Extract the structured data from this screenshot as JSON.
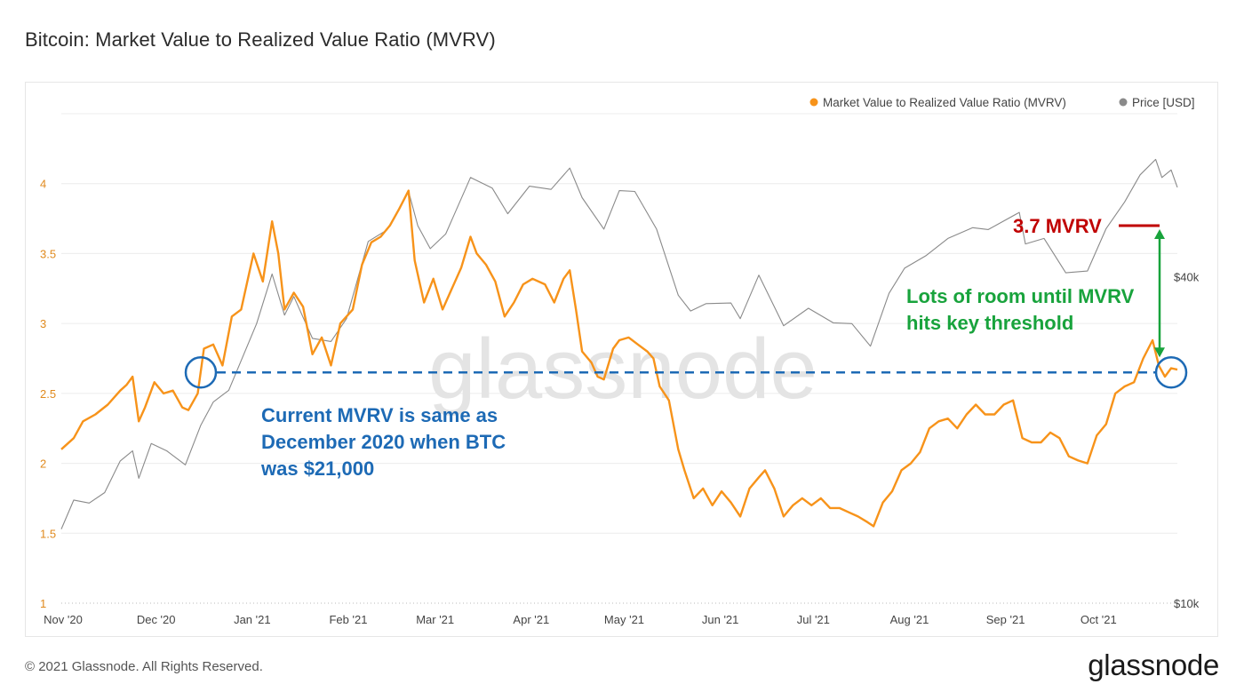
{
  "title": "Bitcoin: Market Value to Realized Value Ratio (MVRV)",
  "footer": {
    "copyright": "© 2021 Glassnode. All Rights Reserved.",
    "logo": "glassnode"
  },
  "watermark": "glassnode",
  "colors": {
    "mvrv": "#f7931a",
    "price": "#8a8a8a",
    "grid": "#ececec",
    "axis_left": "#e08a1e",
    "blue": "#1d6ab5",
    "red": "#c00000",
    "green": "#18a33c",
    "text_axis": "#444444"
  },
  "chart_data": {
    "type": "line",
    "title": "Bitcoin: Market Value to Realized Value Ratio (MVRV)",
    "legend_position": "top-right",
    "grid": true,
    "x": {
      "start": "2020-11-01",
      "end": "2021-10-27",
      "tick_labels": [
        "Nov '20",
        "Dec '20",
        "Jan '21",
        "Feb '21",
        "Mar '21",
        "Apr '21",
        "May '21",
        "Jun '21",
        "Jul '21",
        "Aug '21",
        "Sep '21",
        "Oct '21"
      ]
    },
    "y_left": {
      "range": [
        1,
        4.5
      ],
      "ticks": [
        1,
        1.5,
        2,
        2.5,
        3,
        3.5,
        4
      ]
    },
    "y_right": {
      "scale": "log",
      "range": [
        10000,
        80000
      ],
      "tick_labels": [
        "$10k",
        "$40k"
      ],
      "tick_values": [
        10000,
        40000
      ]
    },
    "series": [
      {
        "name": "Market Value to Realized Value Ratio (MVRV)",
        "axis": "left",
        "points": [
          [
            "2020-11-01",
            2.1
          ],
          [
            "2020-11-05",
            2.18
          ],
          [
            "2020-11-08",
            2.3
          ],
          [
            "2020-11-12",
            2.35
          ],
          [
            "2020-11-16",
            2.42
          ],
          [
            "2020-11-20",
            2.52
          ],
          [
            "2020-11-22",
            2.56
          ],
          [
            "2020-11-24",
            2.62
          ],
          [
            "2020-11-26",
            2.3
          ],
          [
            "2020-11-28",
            2.4
          ],
          [
            "2020-12-01",
            2.58
          ],
          [
            "2020-12-04",
            2.5
          ],
          [
            "2020-12-07",
            2.52
          ],
          [
            "2020-12-10",
            2.4
          ],
          [
            "2020-12-12",
            2.38
          ],
          [
            "2020-12-15",
            2.5
          ],
          [
            "2020-12-17",
            2.82
          ],
          [
            "2020-12-20",
            2.85
          ],
          [
            "2020-12-23",
            2.7
          ],
          [
            "2020-12-26",
            3.05
          ],
          [
            "2020-12-29",
            3.1
          ],
          [
            "2021-01-02",
            3.5
          ],
          [
            "2021-01-05",
            3.3
          ],
          [
            "2021-01-08",
            3.73
          ],
          [
            "2021-01-10",
            3.5
          ],
          [
            "2021-01-12",
            3.1
          ],
          [
            "2021-01-15",
            3.22
          ],
          [
            "2021-01-18",
            3.12
          ],
          [
            "2021-01-21",
            2.78
          ],
          [
            "2021-01-24",
            2.9
          ],
          [
            "2021-01-27",
            2.7
          ],
          [
            "2021-01-30",
            3.0
          ],
          [
            "2021-02-03",
            3.1
          ],
          [
            "2021-02-06",
            3.42
          ],
          [
            "2021-02-09",
            3.58
          ],
          [
            "2021-02-12",
            3.62
          ],
          [
            "2021-02-15",
            3.7
          ],
          [
            "2021-02-18",
            3.82
          ],
          [
            "2021-02-21",
            3.95
          ],
          [
            "2021-02-23",
            3.45
          ],
          [
            "2021-02-26",
            3.15
          ],
          [
            "2021-03-01",
            3.32
          ],
          [
            "2021-03-04",
            3.1
          ],
          [
            "2021-03-07",
            3.25
          ],
          [
            "2021-03-10",
            3.4
          ],
          [
            "2021-03-13",
            3.62
          ],
          [
            "2021-03-15",
            3.5
          ],
          [
            "2021-03-18",
            3.42
          ],
          [
            "2021-03-21",
            3.3
          ],
          [
            "2021-03-24",
            3.05
          ],
          [
            "2021-03-27",
            3.15
          ],
          [
            "2021-03-30",
            3.28
          ],
          [
            "2021-04-02",
            3.32
          ],
          [
            "2021-04-06",
            3.28
          ],
          [
            "2021-04-09",
            3.15
          ],
          [
            "2021-04-12",
            3.32
          ],
          [
            "2021-04-14",
            3.38
          ],
          [
            "2021-04-16",
            3.1
          ],
          [
            "2021-04-18",
            2.8
          ],
          [
            "2021-04-21",
            2.72
          ],
          [
            "2021-04-23",
            2.62
          ],
          [
            "2021-04-25",
            2.6
          ],
          [
            "2021-04-28",
            2.82
          ],
          [
            "2021-04-30",
            2.88
          ],
          [
            "2021-05-03",
            2.9
          ],
          [
            "2021-05-06",
            2.85
          ],
          [
            "2021-05-09",
            2.8
          ],
          [
            "2021-05-11",
            2.75
          ],
          [
            "2021-05-13",
            2.55
          ],
          [
            "2021-05-16",
            2.45
          ],
          [
            "2021-05-19",
            2.1
          ],
          [
            "2021-05-21",
            1.95
          ],
          [
            "2021-05-24",
            1.75
          ],
          [
            "2021-05-27",
            1.82
          ],
          [
            "2021-05-30",
            1.7
          ],
          [
            "2021-06-02",
            1.8
          ],
          [
            "2021-06-05",
            1.72
          ],
          [
            "2021-06-08",
            1.62
          ],
          [
            "2021-06-11",
            1.82
          ],
          [
            "2021-06-14",
            1.9
          ],
          [
            "2021-06-16",
            1.95
          ],
          [
            "2021-06-19",
            1.82
          ],
          [
            "2021-06-22",
            1.62
          ],
          [
            "2021-06-25",
            1.7
          ],
          [
            "2021-06-28",
            1.75
          ],
          [
            "2021-07-01",
            1.7
          ],
          [
            "2021-07-04",
            1.75
          ],
          [
            "2021-07-07",
            1.68
          ],
          [
            "2021-07-10",
            1.68
          ],
          [
            "2021-07-13",
            1.65
          ],
          [
            "2021-07-16",
            1.62
          ],
          [
            "2021-07-19",
            1.58
          ],
          [
            "2021-07-21",
            1.55
          ],
          [
            "2021-07-24",
            1.72
          ],
          [
            "2021-07-27",
            1.8
          ],
          [
            "2021-07-30",
            1.95
          ],
          [
            "2021-08-02",
            2.0
          ],
          [
            "2021-08-05",
            2.08
          ],
          [
            "2021-08-08",
            2.25
          ],
          [
            "2021-08-11",
            2.3
          ],
          [
            "2021-08-14",
            2.32
          ],
          [
            "2021-08-17",
            2.25
          ],
          [
            "2021-08-20",
            2.35
          ],
          [
            "2021-08-23",
            2.42
          ],
          [
            "2021-08-26",
            2.35
          ],
          [
            "2021-08-29",
            2.35
          ],
          [
            "2021-09-01",
            2.42
          ],
          [
            "2021-09-04",
            2.45
          ],
          [
            "2021-09-07",
            2.18
          ],
          [
            "2021-09-10",
            2.15
          ],
          [
            "2021-09-13",
            2.15
          ],
          [
            "2021-09-16",
            2.22
          ],
          [
            "2021-09-19",
            2.18
          ],
          [
            "2021-09-22",
            2.05
          ],
          [
            "2021-09-25",
            2.02
          ],
          [
            "2021-09-28",
            2.0
          ],
          [
            "2021-10-01",
            2.2
          ],
          [
            "2021-10-04",
            2.28
          ],
          [
            "2021-10-07",
            2.5
          ],
          [
            "2021-10-10",
            2.55
          ],
          [
            "2021-10-13",
            2.58
          ],
          [
            "2021-10-16",
            2.75
          ],
          [
            "2021-10-19",
            2.88
          ],
          [
            "2021-10-21",
            2.7
          ],
          [
            "2021-10-23",
            2.62
          ],
          [
            "2021-10-25",
            2.68
          ],
          [
            "2021-10-27",
            2.67
          ]
        ]
      },
      {
        "name": "Price [USD]",
        "axis": "right",
        "points": [
          [
            "2020-11-01",
            13700
          ],
          [
            "2020-11-05",
            15500
          ],
          [
            "2020-11-10",
            15300
          ],
          [
            "2020-11-15",
            16000
          ],
          [
            "2020-11-20",
            18300
          ],
          [
            "2020-11-24",
            19100
          ],
          [
            "2020-11-26",
            17000
          ],
          [
            "2020-11-30",
            19700
          ],
          [
            "2020-12-05",
            19100
          ],
          [
            "2020-12-11",
            18000
          ],
          [
            "2020-12-16",
            21300
          ],
          [
            "2020-12-20",
            23500
          ],
          [
            "2020-12-25",
            24700
          ],
          [
            "2020-12-30",
            28900
          ],
          [
            "2021-01-03",
            32800
          ],
          [
            "2021-01-08",
            40500
          ],
          [
            "2021-01-12",
            34000
          ],
          [
            "2021-01-15",
            36800
          ],
          [
            "2021-01-21",
            30800
          ],
          [
            "2021-01-27",
            30400
          ],
          [
            "2021-02-01",
            33500
          ],
          [
            "2021-02-08",
            46500
          ],
          [
            "2021-02-14",
            48800
          ],
          [
            "2021-02-21",
            57500
          ],
          [
            "2021-02-24",
            49700
          ],
          [
            "2021-02-28",
            45100
          ],
          [
            "2021-03-05",
            48000
          ],
          [
            "2021-03-13",
            61000
          ],
          [
            "2021-03-20",
            58300
          ],
          [
            "2021-03-25",
            52300
          ],
          [
            "2021-04-01",
            58800
          ],
          [
            "2021-04-08",
            58000
          ],
          [
            "2021-04-14",
            63500
          ],
          [
            "2021-04-18",
            56000
          ],
          [
            "2021-04-25",
            49000
          ],
          [
            "2021-04-30",
            57700
          ],
          [
            "2021-05-05",
            57500
          ],
          [
            "2021-05-12",
            49000
          ],
          [
            "2021-05-19",
            37000
          ],
          [
            "2021-05-23",
            34600
          ],
          [
            "2021-05-28",
            35700
          ],
          [
            "2021-06-05",
            35800
          ],
          [
            "2021-06-08",
            33500
          ],
          [
            "2021-06-14",
            40300
          ],
          [
            "2021-06-22",
            32500
          ],
          [
            "2021-06-30",
            35000
          ],
          [
            "2021-07-08",
            32900
          ],
          [
            "2021-07-14",
            32800
          ],
          [
            "2021-07-20",
            29800
          ],
          [
            "2021-07-26",
            37300
          ],
          [
            "2021-07-31",
            41500
          ],
          [
            "2021-08-07",
            43800
          ],
          [
            "2021-08-14",
            47100
          ],
          [
            "2021-08-22",
            49300
          ],
          [
            "2021-08-27",
            48900
          ],
          [
            "2021-09-06",
            52600
          ],
          [
            "2021-09-08",
            46000
          ],
          [
            "2021-09-14",
            47100
          ],
          [
            "2021-09-21",
            40700
          ],
          [
            "2021-09-28",
            41000
          ],
          [
            "2021-10-04",
            49100
          ],
          [
            "2021-10-10",
            55000
          ],
          [
            "2021-10-15",
            61700
          ],
          [
            "2021-10-20",
            65900
          ],
          [
            "2021-10-22",
            61000
          ],
          [
            "2021-10-25",
            63000
          ],
          [
            "2021-10-27",
            58500
          ]
        ]
      }
    ],
    "reference_line": {
      "y": 2.65,
      "style": "dashed"
    },
    "annotations": [
      {
        "text": "Current MVRV is same as December 2020 when BTC was $21,000",
        "color": "blue"
      },
      {
        "text": "3.7 MVRV",
        "color": "red",
        "y": 3.7
      },
      {
        "text": "Lots of room until MVRV hits key threshold",
        "color": "green"
      }
    ]
  },
  "annotation_text": {
    "blue_lines": [
      "Current MVRV is same as",
      "December 2020 when BTC",
      "was $21,000"
    ],
    "red": "3.7 MVRV",
    "green_lines": [
      "Lots of room until MVRV",
      "hits key threshold"
    ]
  }
}
